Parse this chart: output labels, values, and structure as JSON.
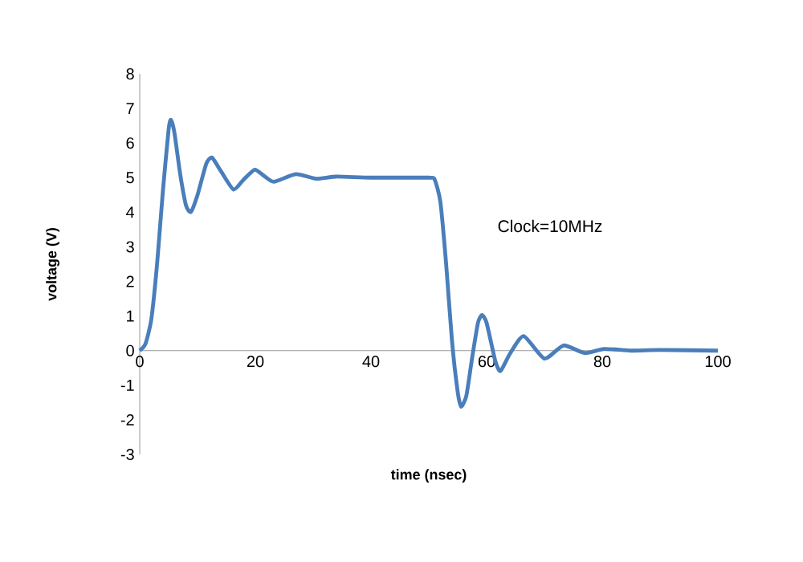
{
  "chart_data": {
    "type": "line",
    "xlabel": "time (nsec)",
    "ylabel": "voltage (V)",
    "annotations": [
      "Clock=10MHz"
    ],
    "xlim": [
      0,
      100
    ],
    "ylim": [
      -3,
      8
    ],
    "xticks": [
      0,
      20,
      40,
      60,
      80,
      100
    ],
    "yticks": [
      -3,
      -2,
      -1,
      0,
      1,
      2,
      3,
      4,
      5,
      6,
      7,
      8
    ],
    "grid": false,
    "legend": false,
    "marker": "none",
    "line_style": "solid",
    "series": [
      {
        "color": "#4a7ebb",
        "x": [
          0,
          1,
          2,
          3,
          4,
          5,
          5.4,
          6,
          7,
          8,
          8.85,
          10,
          11.5,
          12.5,
          14,
          16.2,
          18,
          19.9,
          21.5,
          23.2,
          27,
          30.5,
          34,
          40,
          50,
          51,
          52,
          53,
          54,
          55,
          55.6,
          56.5,
          57.5,
          58.5,
          59.2,
          60,
          61.5,
          62.4,
          64,
          66.4,
          70,
          73.3,
          77,
          80.3,
          85,
          90,
          100
        ],
        "values": [
          0,
          0.2,
          0.9,
          2.5,
          4.6,
          6.4,
          6.67,
          6.3,
          5.1,
          4.2,
          4.01,
          4.5,
          5.4,
          5.58,
          5.2,
          4.66,
          4.95,
          5.23,
          5.05,
          4.88,
          5.1,
          4.97,
          5.03,
          5,
          5,
          4.95,
          4.3,
          2.5,
          0.3,
          -1.2,
          -1.62,
          -1.3,
          -0.2,
          0.8,
          1.03,
          0.8,
          -0.3,
          -0.59,
          -0.1,
          0.42,
          -0.23,
          0.15,
          -0.07,
          0.05,
          0,
          0.02,
          0
        ]
      }
    ]
  }
}
